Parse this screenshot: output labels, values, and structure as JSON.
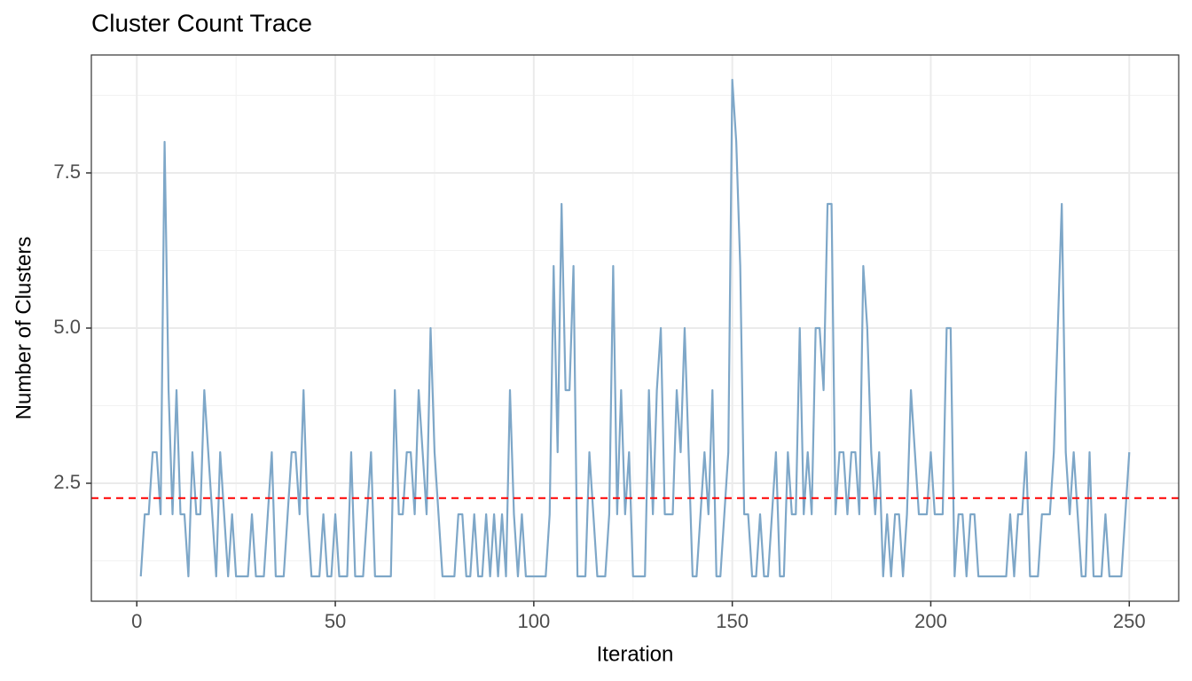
{
  "chart_data": {
    "type": "line",
    "title": "Cluster Count Trace",
    "x_label": "Iteration",
    "y_label": "Number of Clusters",
    "x": [
      1,
      2,
      3,
      4,
      5,
      6,
      7,
      8,
      9,
      10,
      11,
      12,
      13,
      14,
      15,
      16,
      17,
      18,
      19,
      20,
      21,
      22,
      23,
      24,
      25,
      26,
      27,
      28,
      29,
      30,
      31,
      32,
      33,
      34,
      35,
      36,
      37,
      38,
      39,
      40,
      41,
      42,
      43,
      44,
      45,
      46,
      47,
      48,
      49,
      50,
      51,
      52,
      53,
      54,
      55,
      56,
      57,
      58,
      59,
      60,
      61,
      62,
      63,
      64,
      65,
      66,
      67,
      68,
      69,
      70,
      71,
      72,
      73,
      74,
      75,
      76,
      77,
      78,
      79,
      80,
      81,
      82,
      83,
      84,
      85,
      86,
      87,
      88,
      89,
      90,
      91,
      92,
      93,
      94,
      95,
      96,
      97,
      98,
      99,
      100,
      101,
      102,
      103,
      104,
      105,
      106,
      107,
      108,
      109,
      110,
      111,
      112,
      113,
      114,
      115,
      116,
      117,
      118,
      119,
      120,
      121,
      122,
      123,
      124,
      125,
      126,
      127,
      128,
      129,
      130,
      131,
      132,
      133,
      134,
      135,
      136,
      137,
      138,
      139,
      140,
      141,
      142,
      143,
      144,
      145,
      146,
      147,
      148,
      149,
      150,
      151,
      152,
      153,
      154,
      155,
      156,
      157,
      158,
      159,
      160,
      161,
      162,
      163,
      164,
      165,
      166,
      167,
      168,
      169,
      170,
      171,
      172,
      173,
      174,
      175,
      176,
      177,
      178,
      179,
      180,
      181,
      182,
      183,
      184,
      185,
      186,
      187,
      188,
      189,
      190,
      191,
      192,
      193,
      194,
      195,
      196,
      197,
      198,
      199,
      200,
      201,
      202,
      203,
      204,
      205,
      206,
      207,
      208,
      209,
      210,
      211,
      212,
      213,
      214,
      215,
      216,
      217,
      218,
      219,
      220,
      221,
      222,
      223,
      224,
      225,
      226,
      227,
      228,
      229,
      230,
      231,
      232,
      233,
      234,
      235,
      236,
      237,
      238,
      239,
      240,
      241,
      242,
      243,
      244,
      245,
      246,
      247,
      248,
      249,
      250
    ],
    "series": [
      {
        "color": "#7ea7c8",
        "values": [
          1,
          2,
          2,
          3,
          3,
          2,
          8,
          4,
          2,
          4,
          2,
          2,
          1,
          3,
          2,
          2,
          4,
          3,
          2,
          1,
          3,
          2,
          1,
          2,
          1,
          1,
          1,
          1,
          2,
          1,
          1,
          1,
          2,
          3,
          1,
          1,
          1,
          2,
          3,
          3,
          2,
          4,
          2,
          1,
          1,
          1,
          2,
          1,
          1,
          2,
          1,
          1,
          1,
          3,
          1,
          1,
          1,
          2,
          3,
          1,
          1,
          1,
          1,
          1,
          4,
          2,
          2,
          3,
          3,
          2,
          4,
          3,
          2,
          5,
          3,
          2,
          1,
          1,
          1,
          1,
          2,
          2,
          1,
          1,
          2,
          1,
          1,
          2,
          1,
          2,
          1,
          2,
          1,
          4,
          2,
          1,
          2,
          1,
          1,
          1,
          1,
          1,
          1,
          2,
          6,
          3,
          7,
          4,
          4,
          6,
          1,
          1,
          1,
          3,
          2,
          1,
          1,
          1,
          2,
          6,
          2,
          4,
          2,
          3,
          1,
          1,
          1,
          1,
          4,
          2,
          4,
          5,
          2,
          2,
          2,
          4,
          3,
          5,
          3,
          1,
          1,
          2,
          3,
          2,
          4,
          1,
          1,
          2,
          3,
          9,
          8,
          6,
          2,
          2,
          1,
          1,
          2,
          1,
          1,
          2,
          3,
          1,
          1,
          3,
          2,
          2,
          5,
          2,
          3,
          2,
          5,
          5,
          4,
          7,
          7,
          2,
          3,
          3,
          2,
          3,
          3,
          2,
          6,
          5,
          3,
          2,
          3,
          1,
          2,
          1,
          2,
          2,
          1,
          2,
          4,
          3,
          2,
          2,
          2,
          3,
          2,
          2,
          2,
          5,
          5,
          1,
          2,
          2,
          1,
          2,
          2,
          1,
          1,
          1,
          1,
          1,
          1,
          1,
          1,
          2,
          1,
          2,
          2,
          3,
          1,
          1,
          1,
          2,
          2,
          2,
          3,
          5,
          7,
          3,
          2,
          3,
          2,
          1,
          1,
          3,
          1,
          1,
          1,
          2,
          1,
          1,
          1,
          1,
          2,
          3
        ]
      }
    ],
    "hline": {
      "value": 2.26,
      "color": "#ff0000"
    },
    "xlim": [
      -11.45,
      262.45
    ],
    "xticks": [
      0,
      50,
      100,
      150,
      200,
      250
    ],
    "xminor": [
      25,
      75,
      125,
      175,
      225
    ],
    "ylim": [
      0.6,
      9.4
    ],
    "yticks": [
      2.5,
      {
        "value": 5,
        "label": "5.0"
      },
      7.5
    ],
    "yminor": [
      1.25,
      3.75,
      6.25,
      8.75
    ],
    "grid": true
  }
}
